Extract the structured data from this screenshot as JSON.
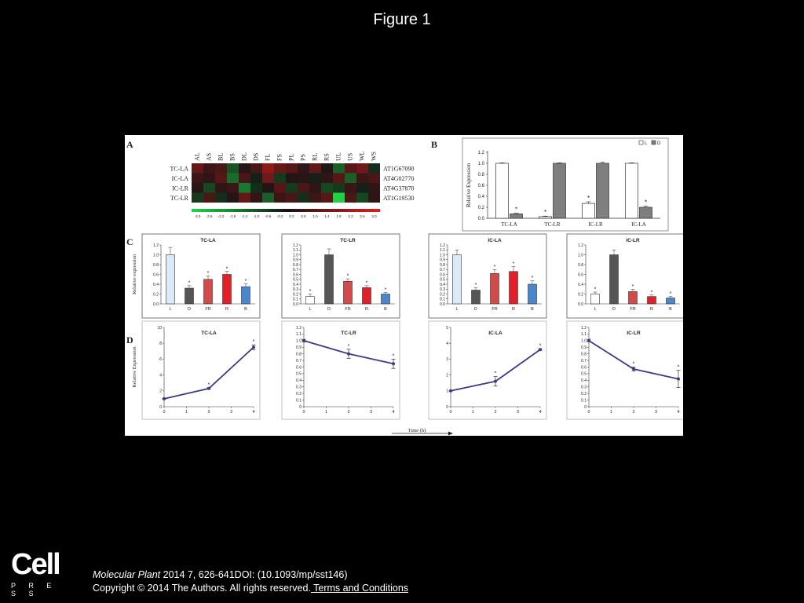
{
  "slide": {
    "title": "Figure 1",
    "logo_text": "Cell",
    "logo_sub": "P R E S S",
    "journal": "Molecular Plant",
    "citation": " 2014 7, 626-641DOI: (10.1093/mp/sst146)",
    "copyright": "Copyright © 2014 The Authors. All rights reserved.",
    "terms_link": " Terms and Conditions"
  },
  "panel_labels": [
    "A",
    "B",
    "C",
    "D"
  ],
  "chart_data": [
    {
      "id": "A",
      "type": "heatmap",
      "columns": [
        "AL",
        "AS",
        "BL",
        "BS",
        "DL",
        "DS",
        "FL",
        "FS",
        "PL",
        "PS",
        "RL",
        "RS",
        "UL",
        "US",
        "WL",
        "WS"
      ],
      "rows": [
        "TC-LA",
        "IC-LA",
        "IC-LR",
        "TC-LR"
      ],
      "row_genes": [
        "AT1G67090",
        "AT4G02770",
        "AT4G37870",
        "AT1G19530"
      ],
      "values": [
        [
          1.2,
          0.6,
          0.8,
          -1.0,
          0.3,
          0.8,
          1.8,
          1.2,
          1.0,
          0.4,
          1.1,
          0.2,
          -1.2,
          1.0,
          1.4,
          -0.4
        ],
        [
          0.6,
          0.4,
          1.0,
          -1.4,
          0.8,
          -0.2,
          1.4,
          -0.6,
          0.2,
          0.3,
          -0.2,
          0.4,
          1.0,
          -1.2,
          0.6,
          0.8
        ],
        [
          0.3,
          -0.8,
          0.4,
          0.6,
          -1.6,
          -0.4,
          0.2,
          1.0,
          -0.6,
          0.8,
          0.4,
          -0.8,
          -0.6,
          0.6,
          -0.2,
          0.4
        ],
        [
          -0.6,
          0.8,
          -0.4,
          0.2,
          1.2,
          0.4,
          -1.2,
          0.6,
          0.8,
          -0.4,
          0.6,
          1.0,
          -3.0,
          0.8,
          -0.8,
          0.4
        ]
      ],
      "scale_ticks": [
        "-3.0",
        "-2.6",
        "-2.2",
        "-1.8",
        "-1.4",
        "-1.0",
        "-0.6",
        "-0.2",
        "0.2",
        "0.6",
        "1.0",
        "1.4",
        "1.8",
        "2.2",
        "2.6",
        "3.0"
      ],
      "scale_colors": {
        "low": "#1fbf3f",
        "mid": "#111111",
        "high": "#e02020"
      }
    },
    {
      "id": "B",
      "type": "bar",
      "ylabel": "Relative Expression",
      "ylim": [
        0,
        1.2
      ],
      "yticks": [
        "0.0",
        "0.2",
        "0.4",
        "0.6",
        "0.8",
        "1.0",
        "1.2"
      ],
      "categories": [
        "TC-LA",
        "TC-LR",
        "IC-LR",
        "IC-LA"
      ],
      "series": [
        {
          "name": "L",
          "color": "#ffffff",
          "values": [
            1.0,
            0.03,
            0.27,
            1.0
          ],
          "errors": [
            0.01,
            0.01,
            0.03,
            0.01
          ],
          "stars": [
            false,
            true,
            true,
            false
          ]
        },
        {
          "name": "D",
          "color": "#7f7f7f",
          "values": [
            0.08,
            1.0,
            1.0,
            0.2
          ],
          "errors": [
            0.01,
            0.01,
            0.02,
            0.02
          ],
          "stars": [
            true,
            false,
            false,
            true
          ]
        }
      ],
      "legend_position": "top-right"
    },
    {
      "id": "C1",
      "type": "bar",
      "title": "TC-LA",
      "ylabel": "Relative expression",
      "ylim": [
        0,
        1.2
      ],
      "yticks": [
        "0.0",
        "0.2",
        "0.4",
        "0.6",
        "0.8",
        "1.0",
        "1.2"
      ],
      "categories": [
        "L",
        "D",
        "FR",
        "R",
        "B"
      ],
      "values": [
        1.0,
        0.32,
        0.5,
        0.6,
        0.35
      ],
      "errors": [
        0.15,
        0.05,
        0.07,
        0.06,
        0.06
      ],
      "colors": [
        "#dce9f7",
        "#555555",
        "#d24a4a",
        "#e2202a",
        "#4a86cc"
      ],
      "stars": [
        false,
        true,
        true,
        true,
        true
      ]
    },
    {
      "id": "C2",
      "type": "bar",
      "title": "TC-LR",
      "ylim": [
        0,
        1.2
      ],
      "yticks": [
        "0.0",
        "0.1",
        "0.2",
        "0.3",
        "0.4",
        "0.5",
        "0.6",
        "0.7",
        "0.8",
        "0.9",
        "1.0",
        "1.1",
        "1.2"
      ],
      "categories": [
        "L",
        "D",
        "FR",
        "R",
        "B"
      ],
      "values": [
        0.15,
        1.0,
        0.46,
        0.33,
        0.2
      ],
      "errors": [
        0.05,
        0.12,
        0.05,
        0.04,
        0.03
      ],
      "colors": [
        "#ffffff",
        "#555555",
        "#d24a4a",
        "#e2202a",
        "#4a86cc"
      ],
      "stars": [
        true,
        false,
        true,
        true,
        true
      ]
    },
    {
      "id": "C3",
      "type": "bar",
      "title": "IC-LA",
      "ylim": [
        0,
        1.2
      ],
      "yticks": [
        "0.0",
        "0.1",
        "0.2",
        "0.3",
        "0.4",
        "0.5",
        "0.6",
        "0.7",
        "0.8",
        "0.9",
        "1.0",
        "1.1",
        "1.2"
      ],
      "categories": [
        "L",
        "D",
        "FR",
        "R",
        "B"
      ],
      "values": [
        1.0,
        0.28,
        0.62,
        0.66,
        0.4
      ],
      "errors": [
        0.1,
        0.05,
        0.08,
        0.1,
        0.07
      ],
      "colors": [
        "#dce9f7",
        "#555555",
        "#d24a4a",
        "#e2202a",
        "#4a86cc"
      ],
      "stars": [
        false,
        true,
        true,
        true,
        true
      ]
    },
    {
      "id": "C4",
      "type": "bar",
      "title": "IC-LR",
      "ylim": [
        0,
        1.2
      ],
      "yticks": [
        "0.0",
        "0.2",
        "0.4",
        "0.6",
        "0.8",
        "1.0",
        "1.2"
      ],
      "categories": [
        "L",
        "D",
        "FR",
        "R",
        "B"
      ],
      "values": [
        0.2,
        1.0,
        0.25,
        0.15,
        0.12
      ],
      "errors": [
        0.04,
        0.1,
        0.05,
        0.03,
        0.03
      ],
      "colors": [
        "#ffffff",
        "#555555",
        "#d24a4a",
        "#e2202a",
        "#4a86cc"
      ],
      "stars": [
        true,
        false,
        true,
        true,
        true
      ]
    },
    {
      "id": "D1",
      "type": "line",
      "title": "TC-LA",
      "ylabel": "Relative Expression",
      "ylim": [
        0,
        10
      ],
      "yticks": [
        "0",
        "2",
        "4",
        "6",
        "8",
        "10"
      ],
      "xticks": [
        "0",
        "1",
        "2",
        "3",
        "4"
      ],
      "x": [
        0,
        2,
        4
      ],
      "y": [
        1.0,
        2.3,
        7.5
      ],
      "errors": [
        0.05,
        0.1,
        0.3
      ],
      "stars": [
        false,
        true,
        true
      ]
    },
    {
      "id": "D2",
      "type": "line",
      "title": "TC-LR",
      "ylim": [
        0,
        1.2
      ],
      "yticks": [
        "0",
        "0.1",
        "0.2",
        "0.3",
        "0.4",
        "0.5",
        "0.6",
        "0.7",
        "0.8",
        "0.9",
        "1.0",
        "1.1",
        "1.2"
      ],
      "xticks": [
        "0",
        "1",
        "2",
        "3",
        "4"
      ],
      "x": [
        0,
        2,
        4
      ],
      "y": [
        1.0,
        0.8,
        0.65
      ],
      "errors": [
        0.02,
        0.07,
        0.07
      ],
      "stars": [
        false,
        true,
        true
      ]
    },
    {
      "id": "D3",
      "type": "line",
      "title": "IC-LA",
      "ylim": [
        0,
        5
      ],
      "yticks": [
        "0",
        "1",
        "2",
        "3",
        "4",
        "5"
      ],
      "xticks": [
        "0",
        "1",
        "2",
        "3",
        "4"
      ],
      "x": [
        0,
        2,
        4
      ],
      "y": [
        1.0,
        1.6,
        3.6
      ],
      "errors": [
        0.03,
        0.3,
        0.05
      ],
      "stars": [
        false,
        true,
        true
      ]
    },
    {
      "id": "D4",
      "type": "line",
      "title": "IC-LR",
      "ylim": [
        0,
        1.2
      ],
      "yticks": [
        "0",
        "0.1",
        "0.2",
        "0.3",
        "0.4",
        "0.5",
        "0.6",
        "0.7",
        "0.8",
        "0.9",
        "1.0",
        "1.1",
        "1.2"
      ],
      "xticks": [
        "0",
        "1",
        "2",
        "3",
        "4"
      ],
      "x": [
        0,
        2,
        4
      ],
      "y": [
        1.0,
        0.57,
        0.42
      ],
      "errors": [
        0.02,
        0.03,
        0.13
      ],
      "stars": [
        false,
        true,
        true
      ]
    }
  ],
  "shared_xlabel": "Time (h)",
  "line_color": "#3b3a8c"
}
